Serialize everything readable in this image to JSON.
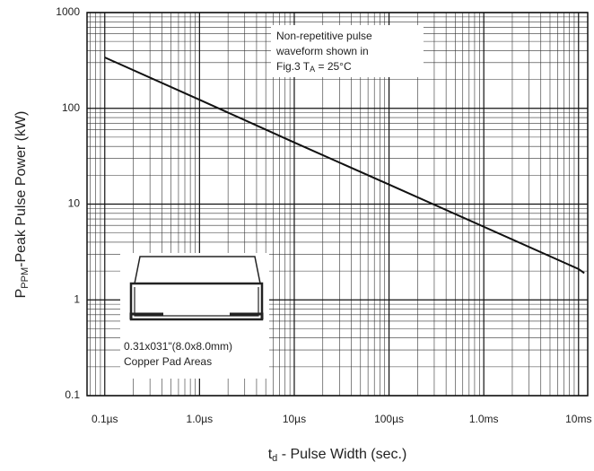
{
  "chart_data": {
    "type": "line",
    "y_label": {
      "main": "P",
      "sub": "PPM",
      "rest": "-Peak Pulse Power (kW)"
    },
    "x_label": {
      "main": "t",
      "sub": "d",
      "rest": " - Pulse Width (sec.)"
    },
    "annotation": {
      "lines": [
        "Non-repetitive pulse",
        "waveform shown in"
      ],
      "last": {
        "main": "Fig.3 T",
        "sub": "A",
        "rest": " = 25°C"
      }
    },
    "inset_caption": [
      "0.31x031\"(8.0x8.0mm)",
      "Copper Pad Areas"
    ],
    "x": [
      1e-07,
      1e-06,
      1e-05,
      0.0001,
      0.001,
      0.01,
      0.0115
    ],
    "series": [
      {
        "color": "#111111",
        "values": [
          340,
          123,
          44,
          16,
          5.8,
          2.1,
          1.9
        ]
      }
    ],
    "xlim": [
      6.5e-08,
      0.0125
    ],
    "xticks": [
      {
        "value": 1e-07,
        "label": "0.1µs"
      },
      {
        "value": 1e-06,
        "label": "1.0µs"
      },
      {
        "value": 1e-05,
        "label": "10µs"
      },
      {
        "value": 0.0001,
        "label": "100µs"
      },
      {
        "value": 0.001,
        "label": "1.0ms"
      },
      {
        "value": 0.01,
        "label": "10ms"
      }
    ],
    "ylim": [
      0.1,
      1000
    ],
    "yticks": [
      0.1,
      1,
      10,
      100,
      1000
    ],
    "xlog": true,
    "ylog": true,
    "grid": true,
    "minor_grid": true
  }
}
